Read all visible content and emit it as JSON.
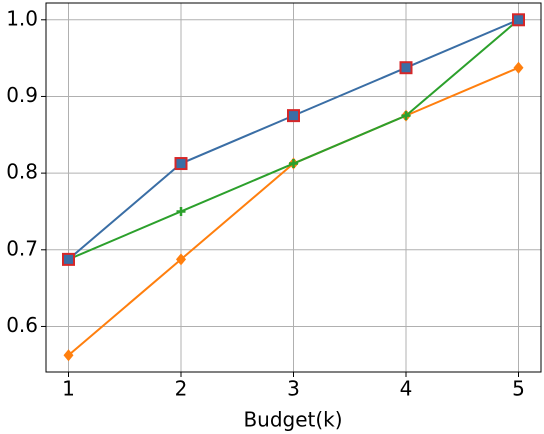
{
  "chart_data": {
    "type": "line",
    "xlabel": "Budget(k)",
    "x": [
      1,
      2,
      3,
      4,
      5
    ],
    "xlim": [
      0.8,
      5.2
    ],
    "xticks": [
      1,
      2,
      3,
      4,
      5
    ],
    "ylim": [
      0.5406,
      1.0219
    ],
    "yticks": [
      0.6,
      0.7,
      0.8,
      0.9,
      {
        "value": 1,
        "label": "1.0"
      }
    ],
    "grid": true,
    "series": [
      {
        "color": "#ff7f0e",
        "marker": "diamond",
        "values": [
          0.5625,
          0.6875,
          0.8125,
          0.875,
          0.9375
        ]
      },
      {
        "color": "#2ca02c",
        "marker": "plus",
        "values": [
          0.6875,
          0.75,
          0.8125,
          0.875,
          1.0
        ]
      },
      {
        "color": "#3a6ea5",
        "marker": "square",
        "marker_edge_color": "#d62728",
        "values": [
          0.6875,
          0.8125,
          0.875,
          0.9375,
          1.0
        ]
      }
    ]
  }
}
